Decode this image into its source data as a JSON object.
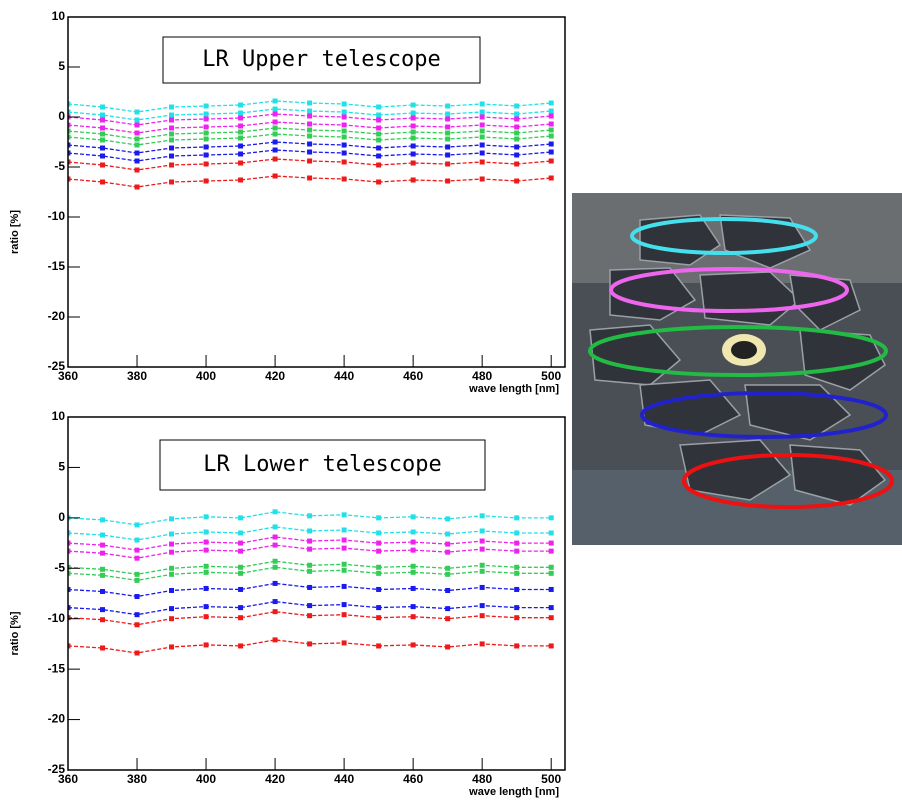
{
  "chart_data": [
    {
      "type": "line",
      "title": "LR Upper telescope",
      "x_label": "wave length [nm]",
      "y_label": "ratio [%]",
      "x": [
        360,
        370,
        380,
        390,
        400,
        410,
        420,
        430,
        440,
        450,
        460,
        470,
        480,
        490,
        500
      ],
      "xlim": [
        360,
        504
      ],
      "ylim": [
        -25,
        10
      ],
      "xticks": [
        360,
        380,
        400,
        420,
        440,
        460,
        480,
        500
      ],
      "yticks": [
        -25,
        -20,
        -15,
        -10,
        -5,
        0,
        5,
        10
      ],
      "series": [
        {
          "color": "#22e0e8",
          "values": [
            1.3,
            1.0,
            0.5,
            1.0,
            1.1,
            1.2,
            1.6,
            1.4,
            1.3,
            1.0,
            1.2,
            1.1,
            1.3,
            1.1,
            1.4
          ]
        },
        {
          "color": "#22e0e8",
          "values": [
            0.5,
            0.2,
            -0.3,
            0.2,
            0.3,
            0.4,
            0.8,
            0.6,
            0.5,
            0.2,
            0.4,
            0.3,
            0.5,
            0.3,
            0.6
          ]
        },
        {
          "color": "#ee22ee",
          "values": [
            0,
            -0.3,
            -0.8,
            -0.3,
            -0.2,
            -0.1,
            0.3,
            0.1,
            0,
            -0.3,
            -0.1,
            -0.2,
            0,
            -0.2,
            0.1
          ]
        },
        {
          "color": "#ee22ee",
          "values": [
            -0.8,
            -1.1,
            -1.6,
            -1.1,
            -1.0,
            -0.9,
            -0.5,
            -0.7,
            -0.8,
            -1.1,
            -0.9,
            -1.0,
            -0.8,
            -1.0,
            -0.7
          ]
        },
        {
          "color": "#33cc55",
          "values": [
            -1.4,
            -1.7,
            -2.2,
            -1.7,
            -1.6,
            -1.5,
            -1.1,
            -1.3,
            -1.4,
            -1.7,
            -1.5,
            -1.6,
            -1.4,
            -1.6,
            -1.3
          ]
        },
        {
          "color": "#33cc55",
          "values": [
            -2,
            -2.3,
            -2.8,
            -2.3,
            -2.2,
            -2.1,
            -1.7,
            -1.9,
            -2,
            -2.3,
            -2.1,
            -2.2,
            -2,
            -2.2,
            -1.9
          ]
        },
        {
          "color": "#1a1aee",
          "values": [
            -2.8,
            -3.1,
            -3.6,
            -3.1,
            -3.0,
            -2.9,
            -2.5,
            -2.7,
            -2.8,
            -3.1,
            -2.9,
            -3.0,
            -2.8,
            -3.0,
            -2.7
          ]
        },
        {
          "color": "#1a1aee",
          "values": [
            -3.6,
            -3.9,
            -4.4,
            -3.9,
            -3.8,
            -3.7,
            -3.3,
            -3.5,
            -3.6,
            -3.9,
            -3.7,
            -3.8,
            -3.6,
            -3.8,
            -3.5
          ]
        },
        {
          "color": "#ee1a1a",
          "values": [
            -4.5,
            -4.8,
            -5.3,
            -4.8,
            -4.7,
            -4.6,
            -4.2,
            -4.4,
            -4.5,
            -4.8,
            -4.6,
            -4.7,
            -4.5,
            -4.7,
            -4.4
          ]
        },
        {
          "color": "#ee1a1a",
          "values": [
            -6.2,
            -6.5,
            -7.0,
            -6.5,
            -6.4,
            -6.3,
            -5.9,
            -6.1,
            -6.2,
            -6.5,
            -6.3,
            -6.4,
            -6.2,
            -6.4,
            -6.1
          ]
        }
      ]
    },
    {
      "type": "line",
      "title": "LR Lower telescope",
      "x_label": "wave length [nm]",
      "y_label": "ratio [%]",
      "x": [
        360,
        370,
        380,
        390,
        400,
        410,
        420,
        430,
        440,
        450,
        460,
        470,
        480,
        490,
        500
      ],
      "xlim": [
        360,
        504
      ],
      "ylim": [
        -25,
        10
      ],
      "xticks": [
        360,
        380,
        400,
        420,
        440,
        460,
        480,
        500
      ],
      "yticks": [
        -25,
        -20,
        -15,
        -10,
        -5,
        0,
        5,
        10
      ],
      "series": [
        {
          "color": "#22e0e8",
          "values": [
            0,
            -0.2,
            -0.7,
            -0.1,
            0.1,
            0,
            0.6,
            0.2,
            0.3,
            0,
            0.1,
            -0.1,
            0.2,
            0,
            0
          ]
        },
        {
          "color": "#22e0e8",
          "values": [
            -1.5,
            -1.7,
            -2.2,
            -1.6,
            -1.4,
            -1.5,
            -0.9,
            -1.3,
            -1.2,
            -1.5,
            -1.4,
            -1.6,
            -1.3,
            -1.5,
            -1.5
          ]
        },
        {
          "color": "#ee22ee",
          "values": [
            -2.5,
            -2.7,
            -3.2,
            -2.6,
            -2.4,
            -2.5,
            -1.9,
            -2.3,
            -2.2,
            -2.5,
            -2.4,
            -2.6,
            -2.3,
            -2.5,
            -2.5
          ]
        },
        {
          "color": "#ee22ee",
          "values": [
            -3.3,
            -3.5,
            -4,
            -3.4,
            -3.2,
            -3.3,
            -2.7,
            -3.1,
            -3,
            -3.3,
            -3.2,
            -3.4,
            -3.1,
            -3.3,
            -3.3
          ]
        },
        {
          "color": "#33cc55",
          "values": [
            -4.9,
            -5.1,
            -5.6,
            -5,
            -4.8,
            -4.9,
            -4.3,
            -4.7,
            -4.6,
            -4.9,
            -4.8,
            -5,
            -4.7,
            -4.9,
            -4.9
          ]
        },
        {
          "color": "#33cc55",
          "values": [
            -5.5,
            -5.7,
            -6.2,
            -5.6,
            -5.4,
            -5.5,
            -4.9,
            -5.3,
            -5.2,
            -5.5,
            -5.4,
            -5.6,
            -5.3,
            -5.5,
            -5.5
          ]
        },
        {
          "color": "#1a1aee",
          "values": [
            -7.1,
            -7.3,
            -7.8,
            -7.2,
            -7,
            -7.1,
            -6.5,
            -6.9,
            -6.8,
            -7.1,
            -7,
            -7.2,
            -6.9,
            -7.1,
            -7.1
          ]
        },
        {
          "color": "#1a1aee",
          "values": [
            -8.9,
            -9.1,
            -9.6,
            -9,
            -8.8,
            -8.9,
            -8.3,
            -8.7,
            -8.6,
            -8.9,
            -8.8,
            -9,
            -8.7,
            -8.9,
            -8.9
          ]
        },
        {
          "color": "#ee1a1a",
          "values": [
            -9.9,
            -10.1,
            -10.6,
            -10,
            -9.8,
            -9.9,
            -9.3,
            -9.7,
            -9.6,
            -9.9,
            -9.8,
            -10,
            -9.7,
            -9.9,
            -9.9
          ]
        },
        {
          "color": "#ee1a1a",
          "values": [
            -12.7,
            -12.9,
            -13.4,
            -12.8,
            -12.6,
            -12.7,
            -12.1,
            -12.5,
            -12.4,
            -12.7,
            -12.6,
            -12.8,
            -12.5,
            -12.7,
            -12.7
          ]
        }
      ]
    }
  ]
}
